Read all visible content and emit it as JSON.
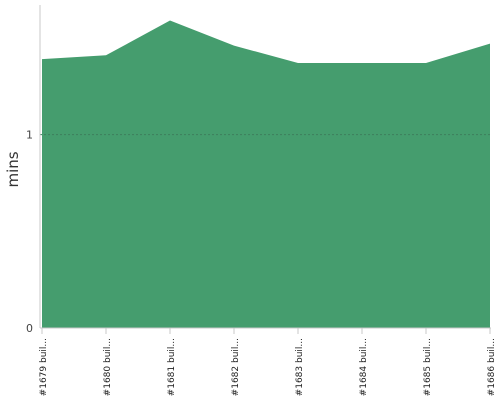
{
  "chart_data": {
    "type": "area",
    "categories": [
      "#1679 buil...",
      "#1680 buil...",
      "#1681 buil...",
      "#1682 buil...",
      "#1683 buil...",
      "#1684 buil...",
      "#1685 buil...",
      "#1686 buil..."
    ],
    "values": [
      1.39,
      1.41,
      1.59,
      1.46,
      1.37,
      1.37,
      1.37,
      1.47
    ],
    "ylabel": "mins",
    "ylim": [
      0,
      1.67
    ],
    "yticks": [
      "0",
      "1"
    ],
    "grid_lines_at": [
      1
    ],
    "legend": "none",
    "colors": {
      "area": "#459d6e",
      "axis": "#c8c8c8",
      "grid": "#3d7f5c",
      "text": "#222222"
    }
  }
}
